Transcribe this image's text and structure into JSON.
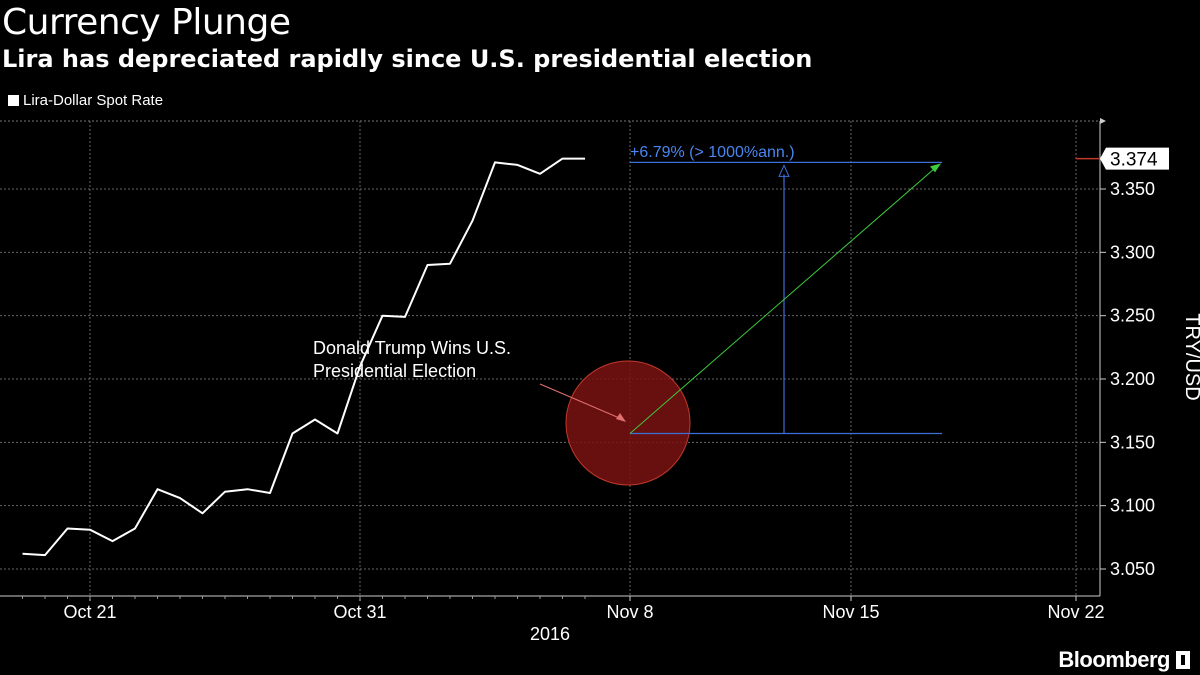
{
  "chart_data": {
    "type": "line",
    "title": "Currency Plunge",
    "subtitle": "Lira has depreciated rapidly since U.S. presidential election",
    "legend": [
      "Lira-Dollar Spot Rate"
    ],
    "series": [
      {
        "name": "Lira-Dollar Spot Rate",
        "x": [
          -1,
          0,
          1,
          2,
          3,
          4,
          5,
          6,
          7,
          8,
          9,
          10,
          11,
          12,
          13,
          14,
          15,
          16,
          17,
          18,
          19,
          20,
          21,
          22,
          23,
          24
        ],
        "values": [
          3.062,
          3.061,
          3.082,
          3.081,
          3.072,
          3.082,
          3.113,
          3.106,
          3.094,
          3.111,
          3.113,
          3.11,
          3.157,
          3.168,
          3.157,
          3.21,
          3.25,
          3.249,
          3.29,
          3.291,
          3.325,
          3.371,
          3.369,
          3.362,
          3.374,
          3.374
        ]
      }
    ],
    "x_tick_labels": [
      "Oct 21",
      "Oct 31",
      "Nov 8",
      "Nov 15",
      "Nov 22"
    ],
    "x_year_label": "2016",
    "y_ticks": [
      3.05,
      3.1,
      3.15,
      3.2,
      3.25,
      3.3,
      3.35
    ],
    "y_tick_labels": [
      "3.050",
      "3.100",
      "3.150",
      "3.200",
      "3.250",
      "3.300",
      "3.350"
    ],
    "ylim": [
      3.035,
      3.4
    ],
    "ylabel": "TRY/USD",
    "last_value_label": "3.374",
    "annotations": {
      "event_text_line1": "Donald Trump Wins U.S.",
      "event_text_line2": "Presidential Election",
      "change_label": "+6.79% (> 1000%ann.)",
      "change_from": 3.157,
      "change_to": 3.371
    },
    "grid": true
  },
  "brand": "Bloomberg",
  "colors": {
    "background": "#000000",
    "line": "#ffffff",
    "measure": "#3c6fd8",
    "trend": "#3ecc3e",
    "highlight": "#c0392b"
  }
}
